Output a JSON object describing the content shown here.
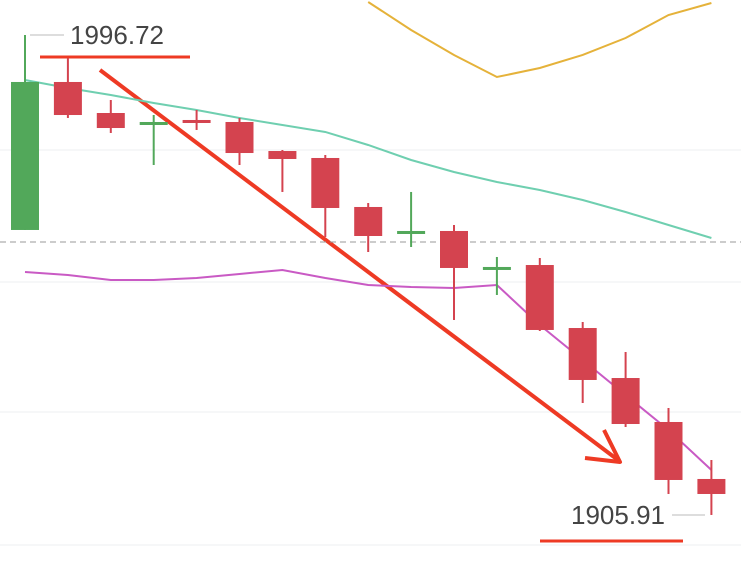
{
  "chart_data": {
    "type": "candlestick",
    "ylim": [
      1895.12,
      2003.34
    ],
    "gridlines": [
      1974.96,
      1949.99,
      1925.39,
      1900.23
    ],
    "reference_line": 1957.55,
    "up_color": "#52a85a",
    "down_color": "#d4434f",
    "candles": [
      {
        "open": 1959.83,
        "close": 1987.83,
        "high": 1996.72,
        "low": 1959.83
      },
      {
        "open": 1987.83,
        "close": 1981.58,
        "high": 1992.37,
        "low": 1981.02
      },
      {
        "open": 1981.96,
        "close": 1979.12,
        "high": 1984.42,
        "low": 1978.18
      },
      {
        "open": 1979.69,
        "close": 1980.26,
        "high": 1981.58,
        "low": 1972.12
      },
      {
        "open": 1980.64,
        "close": 1980.07,
        "high": 1982.53,
        "low": 1978.75
      },
      {
        "open": 1980.26,
        "close": 1974.39,
        "high": 1981.02,
        "low": 1972.12
      },
      {
        "open": 1974.77,
        "close": 1973.26,
        "high": 1974.96,
        "low": 1967.02
      },
      {
        "open": 1973.45,
        "close": 1963.99,
        "high": 1974.02,
        "low": 1958.5
      },
      {
        "open": 1964.18,
        "close": 1958.69,
        "high": 1964.93,
        "low": 1955.66
      },
      {
        "open": 1959.07,
        "close": 1959.64,
        "high": 1967.02,
        "low": 1956.61
      },
      {
        "open": 1959.64,
        "close": 1952.64,
        "high": 1960.77,
        "low": 1942.8
      },
      {
        "open": 1952.64,
        "close": 1952.83,
        "high": 1954.72,
        "low": 1947.53
      },
      {
        "open": 1953.2,
        "close": 1940.91,
        "high": 1954.53,
        "low": 1940.72
      },
      {
        "open": 1941.28,
        "close": 1931.45,
        "high": 1942.42,
        "low": 1927.09
      },
      {
        "open": 1931.82,
        "close": 1923.12,
        "high": 1936.74,
        "low": 1922.55
      },
      {
        "open": 1923.5,
        "close": 1912.53,
        "high": 1926.15,
        "low": 1909.88
      },
      {
        "open": 1912.72,
        "close": 1909.88,
        "high": 1916.31,
        "low": 1905.91
      }
    ],
    "lines": [
      {
        "color": "#6fcfb0",
        "values": [
          1988.21,
          1986.69,
          1985.37,
          1983.86,
          1982.53,
          1981.02,
          1979.69,
          1978.37,
          1975.91,
          1973.07,
          1970.8,
          1968.91,
          1967.39,
          1965.5,
          1963.23,
          1960.77,
          1958.31
        ]
      },
      {
        "color": "#c95ac4",
        "values": [
          1951.88,
          1951.31,
          1950.37,
          1950.37,
          1950.74,
          1951.5,
          1952.26,
          1950.74,
          1949.42,
          1949.04,
          1948.85,
          1949.42,
          1941.85,
          1935.23,
          1928.6,
          1921.98,
          1914.42
        ]
      },
      {
        "color": "#e5b23a",
        "values": [
          null,
          null,
          null,
          null,
          null,
          null,
          null,
          null,
          2002.96,
          1997.67,
          1992.94,
          1988.77,
          1990.48,
          1992.94,
          1996.15,
          2000.5,
          2002.77
        ]
      }
    ],
    "high": 1996.72,
    "low": 1905.91
  }
}
